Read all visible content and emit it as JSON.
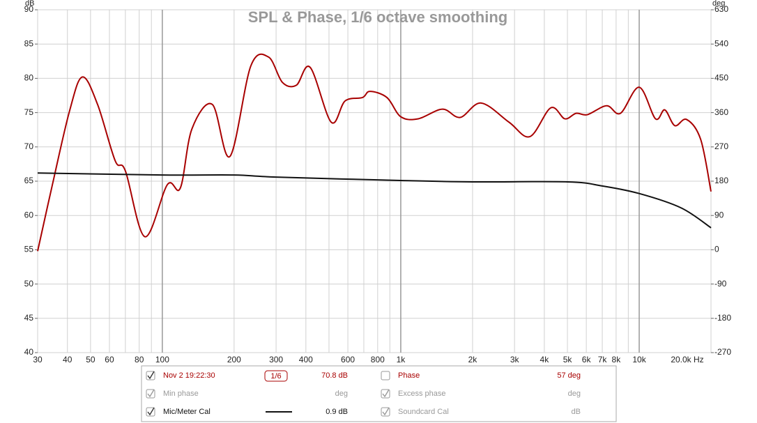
{
  "chart_data": {
    "type": "line",
    "title": "SPL & Phase, 1/6 octave smoothing",
    "y_label": "dB",
    "y2_label": "deg",
    "xscale": "log",
    "xlim": [
      30,
      20000
    ],
    "xticks": [
      30,
      40,
      50,
      60,
      80,
      100,
      200,
      300,
      400,
      600,
      800,
      {
        "value": 1000,
        "label": "1k"
      },
      {
        "value": 2000,
        "label": "2k"
      },
      {
        "value": 3000,
        "label": "3k"
      },
      {
        "value": 4000,
        "label": "4k"
      },
      {
        "value": 5000,
        "label": "5k"
      },
      {
        "value": 6000,
        "label": "6k"
      },
      {
        "value": 7000,
        "label": "7k"
      },
      {
        "value": 8000,
        "label": "8k"
      },
      {
        "value": 10000,
        "label": "10k"
      },
      {
        "value": 20000,
        "label": "20.0k Hz"
      }
    ],
    "xminor": [
      70,
      90,
      500,
      700,
      900,
      9000
    ],
    "xmajor": [
      100,
      1000,
      10000
    ],
    "ylim": [
      40,
      90
    ],
    "yticks": [
      40,
      45,
      50,
      55,
      60,
      65,
      70,
      75,
      80,
      85,
      90
    ],
    "y2lim": [
      -270,
      630
    ],
    "y2ticks": [
      -270,
      -180,
      -90,
      0,
      90,
      180,
      270,
      360,
      450,
      540,
      630
    ],
    "grid": true,
    "series": [
      {
        "name": "Nov 2 19:22:30",
        "color": "#a80000",
        "x": [
          30,
          34.6,
          40.8,
          46.2,
          53.5,
          63.4,
          70,
          84.5,
          105,
          119,
          133,
          162,
          192,
          235,
          279,
          319,
          365,
          417,
          511,
          584,
          691,
          742,
          875,
          1000,
          1184,
          1495,
          1774,
          2173,
          2845,
          3478,
          4256,
          4874,
          5436,
          6063,
          7300,
          8340,
          10000,
          11700,
          12800,
          14100,
          15800,
          18100,
          20000
        ],
        "values": [
          54.8,
          64.5,
          75.2,
          80.2,
          76.2,
          68.0,
          66.5,
          56.9,
          64.5,
          64.0,
          72.6,
          76.2,
          68.6,
          81.8,
          83.1,
          79.4,
          79.0,
          81.6,
          73.6,
          76.7,
          77.2,
          78.1,
          77.2,
          74.4,
          74.1,
          75.5,
          74.3,
          76.4,
          73.6,
          71.5,
          75.7,
          74.1,
          74.9,
          74.7,
          76.0,
          74.9,
          78.7,
          74.1,
          75.4,
          73.1,
          74.0,
          71.1,
          63.5
        ]
      },
      {
        "name": "Mic/Meter Cal",
        "color": "#111111",
        "x": [
          30,
          100,
          200,
          300,
          1000,
          2000,
          5000,
          7000,
          10000,
          15000,
          20000
        ],
        "values": [
          66.2,
          65.9,
          65.9,
          65.6,
          65.1,
          64.9,
          64.9,
          64.3,
          63.2,
          61.1,
          58.2
        ]
      }
    ]
  },
  "panel": {
    "smoothing": "1/6",
    "items": [
      {
        "checked": true,
        "label": "Nov 2 19:22:30",
        "value": "70.8 dB",
        "color": "#a80000"
      },
      {
        "checked": false,
        "label": "Phase",
        "value": "57 deg",
        "color": "#a80000"
      },
      {
        "checked": true,
        "label": "Min phase",
        "value": "deg",
        "color": "#999999"
      },
      {
        "checked": true,
        "label": "Excess phase",
        "value": "deg",
        "color": "#999999"
      },
      {
        "checked": true,
        "label": "Mic/Meter Cal",
        "value": "0.9 dB",
        "color": "#111111"
      },
      {
        "checked": true,
        "label": "Soundcard Cal",
        "value": "dB",
        "color": "#999999"
      }
    ]
  }
}
